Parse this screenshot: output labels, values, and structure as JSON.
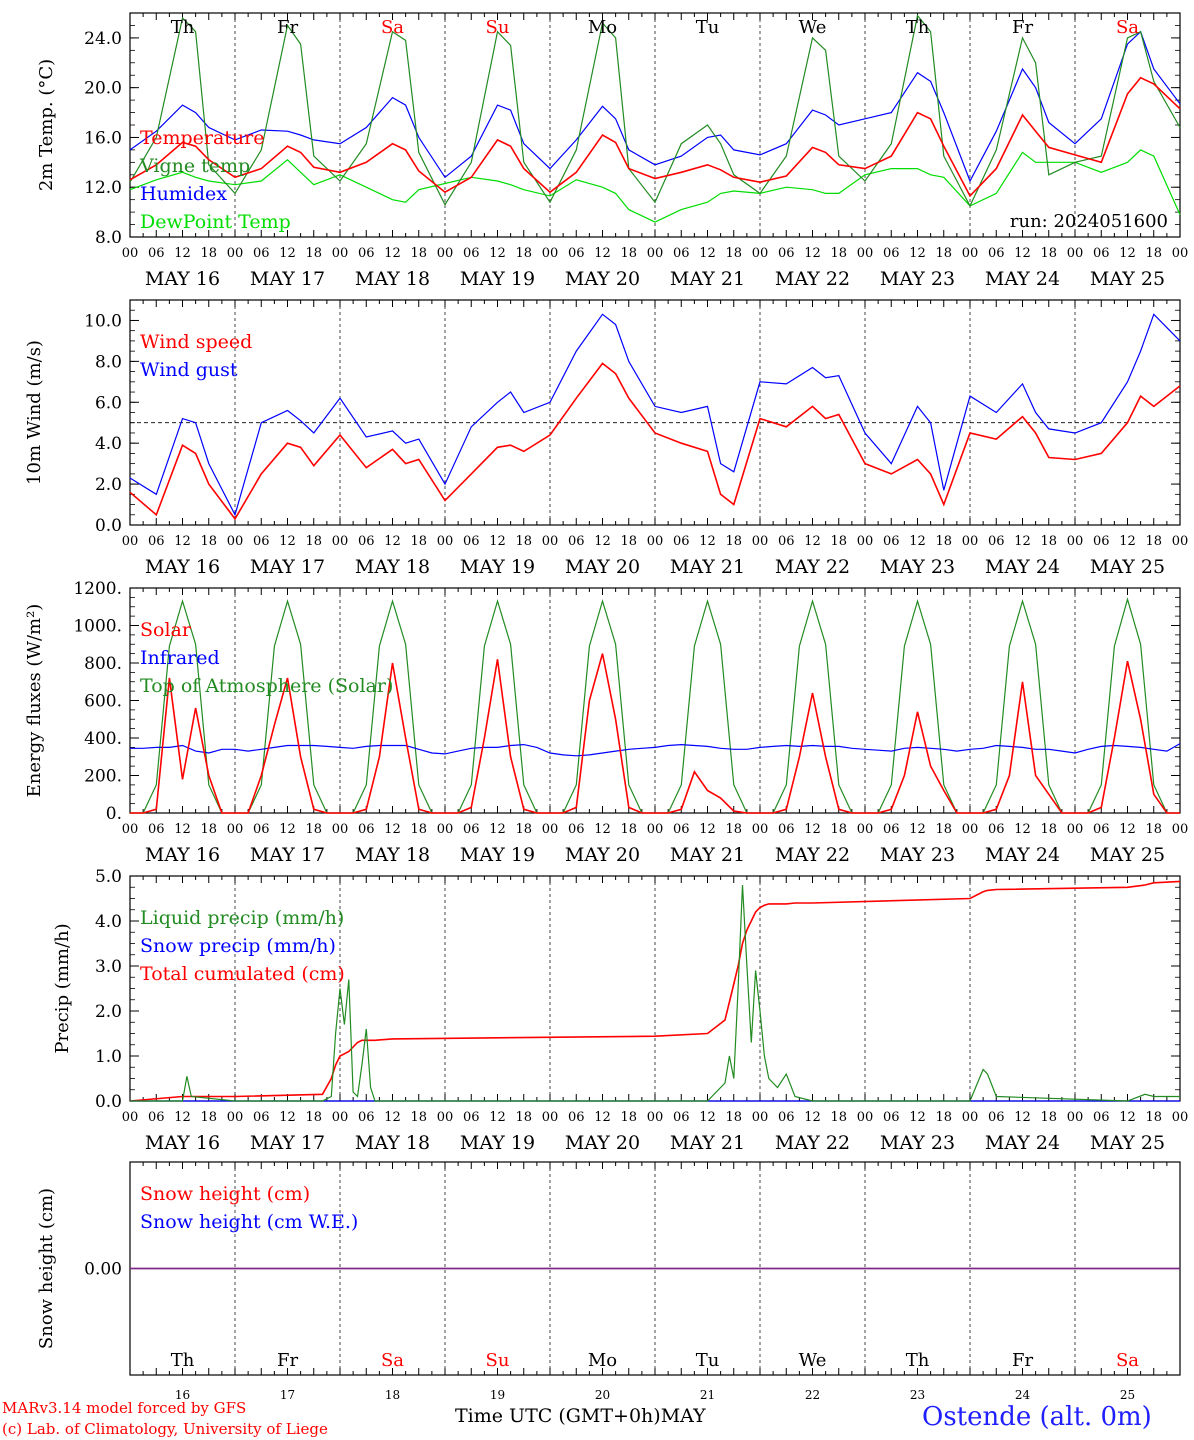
{
  "footer": {
    "credit_line1": "MARv3.14 model forced by GFS",
    "credit_line2": "(c) Lab. of Climatology, University of Liege",
    "x_title": "Time UTC (GMT+0h)MAY",
    "station": "Ostende (alt. 0m)"
  },
  "chart_data": [
    {
      "type": "line",
      "ylabel": "2m Temp. (°C)",
      "ylim": [
        8,
        26
      ],
      "yticks": [
        8,
        12,
        16,
        20,
        24
      ],
      "ytick_labels": [
        "8.0",
        "12.0",
        "16.0",
        "20.0",
        "24.0"
      ],
      "annotation": "run: 2024051600",
      "x": [
        0,
        6,
        12,
        15,
        18,
        24,
        30,
        36,
        39,
        42,
        48,
        54,
        60,
        63,
        66,
        72,
        78,
        84,
        87,
        90,
        96,
        102,
        108,
        111,
        114,
        120,
        126,
        132,
        135,
        138,
        144,
        150,
        156,
        159,
        162,
        168,
        174,
        180,
        183,
        186,
        192,
        198,
        204,
        207,
        210,
        216,
        222,
        228,
        231,
        234,
        240
      ],
      "series": [
        {
          "name": "Temperature",
          "color": "#ff0000",
          "values": [
            12.6,
            13.8,
            15.6,
            15.3,
            14.2,
            12.8,
            13.5,
            15.3,
            14.8,
            13.6,
            13.2,
            14.0,
            15.5,
            15.0,
            13.3,
            11.6,
            12.8,
            15.8,
            15.3,
            13.5,
            11.6,
            13.2,
            16.2,
            15.6,
            13.5,
            12.7,
            13.2,
            13.8,
            13.4,
            12.8,
            12.4,
            12.9,
            15.2,
            14.8,
            13.8,
            13.5,
            14.5,
            18.0,
            17.5,
            15.3,
            11.3,
            13.5,
            17.8,
            16.5,
            15.2,
            14.6,
            14.0,
            19.5,
            20.8,
            20.3,
            18.3
          ]
        },
        {
          "name": "Vigne temp",
          "color": "#228b22",
          "values": [
            12.4,
            16.0,
            25.6,
            24.5,
            13.8,
            11.5,
            15.0,
            25.0,
            23.5,
            14.5,
            12.5,
            15.5,
            24.5,
            23.8,
            14.8,
            10.6,
            14.0,
            24.5,
            23.4,
            14.0,
            10.8,
            15.0,
            25.2,
            24.0,
            13.5,
            10.8,
            15.5,
            17.0,
            15.5,
            13.0,
            11.5,
            14.5,
            24.0,
            23.0,
            14.5,
            12.5,
            15.5,
            25.8,
            24.5,
            14.5,
            10.5,
            15.0,
            24.0,
            22.0,
            13.0,
            14.0,
            14.5,
            24.0,
            24.5,
            20.5,
            16.8
          ]
        },
        {
          "name": "Humidex",
          "color": "#0000ff",
          "values": [
            15.0,
            16.5,
            18.6,
            18.0,
            16.8,
            15.8,
            16.6,
            16.5,
            16.2,
            15.8,
            15.5,
            16.8,
            19.2,
            18.6,
            16.0,
            12.8,
            14.5,
            18.6,
            18.2,
            15.5,
            13.5,
            15.8,
            18.5,
            17.5,
            15.0,
            13.8,
            14.5,
            16.0,
            16.2,
            15.0,
            14.6,
            15.5,
            18.2,
            17.8,
            17.0,
            17.5,
            18.0,
            21.2,
            20.5,
            18.0,
            12.5,
            16.5,
            21.5,
            20.0,
            17.2,
            15.5,
            17.5,
            23.5,
            24.5,
            21.5,
            18.7
          ]
        },
        {
          "name": "DewPoint Temp",
          "color": "#00dd00",
          "values": [
            11.8,
            12.6,
            13.2,
            12.8,
            12.5,
            12.2,
            12.5,
            14.2,
            13.2,
            12.2,
            13.0,
            12.0,
            11.0,
            10.8,
            11.8,
            12.3,
            12.8,
            12.5,
            12.2,
            11.8,
            11.3,
            12.6,
            12.0,
            11.5,
            10.2,
            9.2,
            10.2,
            10.8,
            11.5,
            11.7,
            11.5,
            12.0,
            11.8,
            11.5,
            11.5,
            13.0,
            13.5,
            13.5,
            13.0,
            12.8,
            10.5,
            11.5,
            14.8,
            14.0,
            14.0,
            14.0,
            13.2,
            14.0,
            15.0,
            14.5,
            9.8
          ]
        }
      ]
    },
    {
      "type": "line",
      "ylabel": "10m Wind (m/s)",
      "ylim": [
        0,
        11
      ],
      "yticks": [
        0,
        2,
        4,
        6,
        8,
        10
      ],
      "ytick_labels": [
        "0.0",
        "2.0",
        "4.0",
        "6.0",
        "8.0",
        "10.0"
      ],
      "reference_line": 5.0,
      "x": [
        0,
        6,
        12,
        15,
        18,
        24,
        30,
        36,
        39,
        42,
        48,
        54,
        60,
        63,
        66,
        72,
        78,
        84,
        87,
        90,
        96,
        102,
        108,
        111,
        114,
        120,
        126,
        132,
        135,
        138,
        144,
        150,
        156,
        159,
        162,
        168,
        174,
        180,
        183,
        186,
        192,
        198,
        204,
        207,
        210,
        216,
        222,
        228,
        231,
        234,
        240
      ],
      "series": [
        {
          "name": "Wind speed",
          "color": "#ff0000",
          "values": [
            1.6,
            0.5,
            3.9,
            3.5,
            2.0,
            0.3,
            2.5,
            4.0,
            3.8,
            2.9,
            4.4,
            2.8,
            3.7,
            3.0,
            3.2,
            1.2,
            2.5,
            3.8,
            3.9,
            3.6,
            4.4,
            6.2,
            7.9,
            7.4,
            6.2,
            4.5,
            4.0,
            3.6,
            1.5,
            1.0,
            5.2,
            4.8,
            5.8,
            5.2,
            5.4,
            3.0,
            2.5,
            3.2,
            2.5,
            1.0,
            4.5,
            4.2,
            5.3,
            4.5,
            3.3,
            3.2,
            3.5,
            5.0,
            6.3,
            5.8,
            6.8
          ]
        },
        {
          "name": "Wind gust",
          "color": "#0000ff",
          "values": [
            2.3,
            1.5,
            5.2,
            5.0,
            3.0,
            0.5,
            5.0,
            5.6,
            5.1,
            4.5,
            6.2,
            4.3,
            4.6,
            4.0,
            4.2,
            2.0,
            4.8,
            6.0,
            6.5,
            5.5,
            6.0,
            8.5,
            10.3,
            9.8,
            8.0,
            5.8,
            5.5,
            5.8,
            3.0,
            2.6,
            7.0,
            6.9,
            7.7,
            7.2,
            7.3,
            4.5,
            3.0,
            5.8,
            5.0,
            1.7,
            6.3,
            5.5,
            6.9,
            5.5,
            4.7,
            4.5,
            5.0,
            7.0,
            8.5,
            10.3,
            9.0
          ]
        }
      ]
    },
    {
      "type": "line",
      "ylabel": "Energy fluxes (W/m²)",
      "ylim": [
        0,
        1200
      ],
      "yticks": [
        0,
        200,
        400,
        600,
        800,
        1000,
        1200
      ],
      "ytick_labels": [
        "0.",
        "200.",
        "400.",
        "600.",
        "800.",
        "1000.",
        "1200."
      ],
      "x": [
        0,
        3,
        6,
        9,
        12,
        15,
        18,
        21,
        24,
        27,
        30,
        33,
        36,
        39,
        42,
        45,
        48,
        51,
        54,
        57,
        60,
        63,
        66,
        69,
        72,
        75,
        78,
        81,
        84,
        87,
        90,
        93,
        96,
        99,
        102,
        105,
        108,
        111,
        114,
        117,
        120,
        123,
        126,
        129,
        132,
        135,
        138,
        141,
        144,
        147,
        150,
        153,
        156,
        159,
        162,
        165,
        168,
        171,
        174,
        177,
        180,
        183,
        186,
        189,
        192,
        195,
        198,
        201,
        204,
        207,
        210,
        213,
        216,
        219,
        222,
        225,
        228,
        231,
        234,
        237,
        240
      ],
      "series": [
        {
          "name": "Solar",
          "color": "#ff0000",
          "values": [
            0,
            0,
            20,
            720,
            180,
            560,
            200,
            0,
            0,
            0,
            200,
            470,
            720,
            300,
            20,
            0,
            0,
            0,
            20,
            300,
            800,
            400,
            20,
            0,
            0,
            0,
            30,
            400,
            820,
            300,
            20,
            0,
            0,
            0,
            30,
            600,
            850,
            500,
            30,
            0,
            0,
            0,
            20,
            220,
            120,
            80,
            10,
            0,
            0,
            0,
            20,
            300,
            640,
            300,
            20,
            0,
            0,
            0,
            20,
            200,
            540,
            250,
            120,
            0,
            0,
            0,
            20,
            200,
            700,
            200,
            100,
            0,
            0,
            0,
            30,
            400,
            810,
            500,
            100,
            0,
            0
          ]
        },
        {
          "name": "Infrared",
          "color": "#0000ff",
          "values": [
            345,
            345,
            350,
            350,
            360,
            330,
            320,
            340,
            340,
            330,
            340,
            350,
            360,
            360,
            360,
            355,
            350,
            345,
            355,
            360,
            360,
            360,
            340,
            320,
            315,
            330,
            345,
            350,
            350,
            360,
            365,
            350,
            320,
            310,
            305,
            310,
            320,
            330,
            340,
            345,
            350,
            360,
            365,
            360,
            355,
            345,
            340,
            340,
            350,
            355,
            360,
            355,
            360,
            355,
            355,
            345,
            340,
            335,
            330,
            345,
            350,
            345,
            340,
            330,
            340,
            345,
            360,
            355,
            350,
            340,
            340,
            330,
            320,
            340,
            355,
            360,
            355,
            350,
            340,
            330,
            370
          ]
        },
        {
          "name": "Top of Atmosphere (Solar)",
          "color": "#228b22",
          "values": [
            0,
            0,
            150,
            890,
            1130,
            900,
            150,
            0,
            0,
            0,
            150,
            890,
            1130,
            900,
            150,
            0,
            0,
            0,
            150,
            890,
            1130,
            900,
            150,
            0,
            0,
            0,
            150,
            890,
            1130,
            900,
            150,
            0,
            0,
            0,
            150,
            890,
            1130,
            900,
            150,
            0,
            0,
            0,
            150,
            890,
            1130,
            900,
            150,
            0,
            0,
            0,
            150,
            890,
            1130,
            900,
            150,
            0,
            0,
            0,
            150,
            890,
            1130,
            900,
            150,
            0,
            0,
            0,
            150,
            890,
            1130,
            900,
            150,
            0,
            0,
            0,
            150,
            890,
            1140,
            900,
            150,
            0,
            0
          ]
        }
      ]
    },
    {
      "type": "line",
      "ylabel": "Precip (mm/h)",
      "ylim": [
        0,
        5
      ],
      "yticks": [
        0,
        1,
        2,
        3,
        4,
        5
      ],
      "ytick_labels": [
        "0.0",
        "1.0",
        "2.0",
        "3.0",
        "4.0",
        "5.0"
      ],
      "x": [
        0,
        12,
        13,
        14,
        24,
        44,
        46,
        47,
        48,
        49,
        50,
        51,
        52,
        53,
        54,
        55,
        56,
        60,
        120,
        132,
        136,
        137,
        138,
        139,
        140,
        141,
        142,
        143,
        144,
        145,
        146,
        148,
        150,
        152,
        156,
        192,
        195,
        196,
        198,
        228,
        232,
        234,
        240
      ],
      "series": [
        {
          "name": "Liquid precip (mm/h)",
          "color": "#228b22",
          "values": [
            0,
            0,
            0.55,
            0.1,
            0,
            0,
            0.1,
            1.5,
            2.5,
            1.7,
            2.7,
            0.2,
            0.1,
            0.8,
            1.6,
            0.3,
            0,
            0,
            0,
            0,
            0.4,
            1.0,
            0.5,
            2.5,
            4.8,
            3.0,
            1.3,
            2.9,
            2.0,
            1.0,
            0.5,
            0.3,
            0.6,
            0.1,
            0,
            0,
            0.7,
            0.6,
            0.1,
            0,
            0.15,
            0.1,
            0.1
          ]
        },
        {
          "name": "Snow precip (mm/h)",
          "color": "#0000ff",
          "values": [
            0,
            0,
            0,
            0,
            0,
            0,
            0,
            0,
            0,
            0,
            0,
            0,
            0,
            0,
            0,
            0,
            0,
            0,
            0,
            0,
            0,
            0,
            0,
            0,
            0,
            0,
            0,
            0,
            0,
            0,
            0,
            0,
            0,
            0,
            0,
            0,
            0,
            0,
            0,
            0,
            0,
            0,
            0
          ]
        },
        {
          "name": "Total cumulated (cm)",
          "color": "#ff0000",
          "values": [
            0,
            0.1,
            0.1,
            0.1,
            0.1,
            0.15,
            0.5,
            0.8,
            1.0,
            1.05,
            1.1,
            1.2,
            1.3,
            1.35,
            1.35,
            1.35,
            1.35,
            1.38,
            1.44,
            1.5,
            1.8,
            2.2,
            2.6,
            3.0,
            3.5,
            3.8,
            4.0,
            4.2,
            4.3,
            4.35,
            4.38,
            4.38,
            4.38,
            4.4,
            4.4,
            4.5,
            4.65,
            4.68,
            4.7,
            4.75,
            4.8,
            4.85,
            4.88
          ]
        }
      ]
    },
    {
      "type": "line",
      "ylabel": "Snow height (cm)",
      "yticks": [
        0
      ],
      "ytick_labels": [
        "0.00"
      ],
      "x": [
        0,
        240
      ],
      "series": [
        {
          "name": "Snow height (cm)",
          "color": "#ff0000",
          "values": [
            0,
            0
          ]
        },
        {
          "name": "Snow height (cm W.E.)",
          "color": "#0000ff",
          "values": [
            0,
            0
          ]
        }
      ]
    }
  ],
  "axis": {
    "hour_labels": [
      "00",
      "06",
      "12",
      "18"
    ],
    "final_hour_label": "00",
    "date_labels": [
      "MAY 16",
      "MAY 17",
      "MAY 18",
      "MAY 19",
      "MAY 20",
      "MAY 21",
      "MAY 22",
      "MAY 23",
      "MAY 24",
      "MAY 25"
    ],
    "day_numbers": [
      "16",
      "17",
      "18",
      "19",
      "20",
      "21",
      "22",
      "23",
      "24",
      "25"
    ],
    "weekdays": [
      "Th",
      "Fr",
      "Sa",
      "Su",
      "Mo",
      "Tu",
      "We",
      "Th",
      "Fr",
      "Sa"
    ],
    "weekday_colors": [
      "#000000",
      "#000000",
      "#ff0000",
      "#ff0000",
      "#000000",
      "#000000",
      "#000000",
      "#000000",
      "#000000",
      "#ff0000"
    ]
  }
}
